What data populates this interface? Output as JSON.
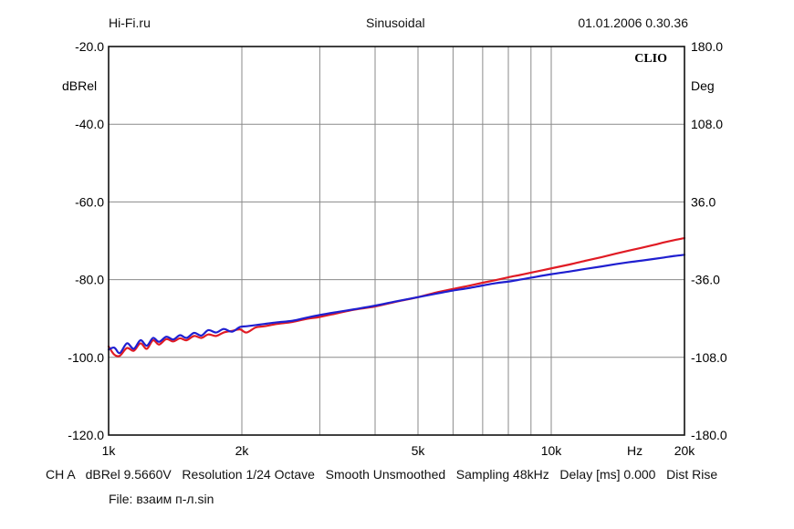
{
  "header": {
    "left": "Hi-Fi.ru",
    "center": "Sinusoidal",
    "right": "01.01.2006 0.30.36"
  },
  "footer": {
    "line": "CH A   dBRel 9.5660V   Resolution 1/24 Octave   Smooth Unsmoothed   Sampling 48kHz   Delay [ms] 0.000   Dist Rise",
    "file": "File: взаим п-л.sin"
  },
  "chart_data": {
    "type": "line",
    "x_scale": "log",
    "xlim": [
      1000,
      20000
    ],
    "ylim": [
      -120,
      -20
    ],
    "y2lim": [
      -180,
      180
    ],
    "ylabel": "dBRel",
    "y2label": "Deg",
    "xlabel": "Hz",
    "brand": "CLIO",
    "x_ticks": [
      {
        "value": 1000,
        "label": "1k"
      },
      {
        "value": 2000,
        "label": "2k"
      },
      {
        "value": 5000,
        "label": "5k"
      },
      {
        "value": 10000,
        "label": "10k"
      },
      {
        "value": 20000,
        "label": "20k"
      }
    ],
    "y_ticks": [
      {
        "value": -20,
        "label": "-20.0"
      },
      {
        "value": -40,
        "label": "-40.0"
      },
      {
        "value": -60,
        "label": "-60.0"
      },
      {
        "value": -80,
        "label": "-80.0"
      },
      {
        "value": -100,
        "label": "-100.0"
      },
      {
        "value": -120,
        "label": "-120.0"
      }
    ],
    "y2_ticks": [
      {
        "value": 180,
        "label": "180.0"
      },
      {
        "value": 108,
        "label": "108.0"
      },
      {
        "value": 36,
        "label": "36.0"
      },
      {
        "value": -36,
        "label": "-36.0"
      },
      {
        "value": -108,
        "label": "-108.0"
      },
      {
        "value": -180,
        "label": "-180.0"
      }
    ],
    "series": [
      {
        "name": "red",
        "color": "#e01b24",
        "x": [
          1000,
          1030,
          1060,
          1100,
          1140,
          1180,
          1220,
          1260,
          1300,
          1350,
          1400,
          1450,
          1500,
          1560,
          1620,
          1680,
          1750,
          1820,
          1900,
          1980,
          2050,
          2150,
          2250,
          2400,
          2600,
          2800,
          3000,
          3300,
          3600,
          4000,
          4500,
          5000,
          5500,
          6000,
          6500,
          7000,
          7500,
          8000,
          8500,
          9000,
          10000,
          11000,
          12000,
          13000,
          14000,
          15000,
          16000,
          17000,
          18000,
          19000,
          20000
        ],
        "values": [
          -97.2,
          -99.3,
          -99.6,
          -97.6,
          -98.3,
          -96.4,
          -97.8,
          -95.6,
          -96.7,
          -95.3,
          -95.9,
          -95.1,
          -95.6,
          -94.5,
          -95.0,
          -94.1,
          -94.5,
          -93.6,
          -93.2,
          -92.8,
          -93.6,
          -92.3,
          -92.0,
          -91.4,
          -90.9,
          -90.1,
          -89.6,
          -88.6,
          -87.7,
          -86.9,
          -85.6,
          -84.5,
          -83.3,
          -82.4,
          -81.6,
          -80.8,
          -80.1,
          -79.4,
          -78.8,
          -78.2,
          -77.1,
          -76.1,
          -75.1,
          -74.2,
          -73.3,
          -72.5,
          -71.8,
          -71.1,
          -70.4,
          -69.8,
          -69.3
        ]
      },
      {
        "name": "blue",
        "color": "#1f1fd0",
        "x": [
          1000,
          1030,
          1060,
          1100,
          1140,
          1180,
          1220,
          1260,
          1300,
          1350,
          1400,
          1450,
          1500,
          1560,
          1620,
          1680,
          1750,
          1820,
          1900,
          1980,
          2050,
          2150,
          2250,
          2400,
          2600,
          2800,
          3000,
          3300,
          3600,
          4000,
          4500,
          5000,
          5500,
          6000,
          6500,
          7000,
          7500,
          8000,
          8500,
          9000,
          10000,
          11000,
          12000,
          13000,
          14000,
          15000,
          16000,
          17000,
          18000,
          19000,
          20000
        ],
        "values": [
          -98.0,
          -97.5,
          -98.9,
          -96.4,
          -97.8,
          -95.6,
          -97.0,
          -95.0,
          -96.0,
          -94.7,
          -95.4,
          -94.3,
          -95.0,
          -93.7,
          -94.4,
          -93.0,
          -93.6,
          -92.7,
          -93.4,
          -92.2,
          -92.0,
          -91.7,
          -91.4,
          -91.0,
          -90.6,
          -89.8,
          -89.1,
          -88.3,
          -87.6,
          -86.7,
          -85.5,
          -84.5,
          -83.6,
          -82.8,
          -82.2,
          -81.5,
          -80.9,
          -80.5,
          -80.0,
          -79.5,
          -78.6,
          -77.9,
          -77.2,
          -76.6,
          -76.0,
          -75.5,
          -75.1,
          -74.7,
          -74.3,
          -73.9,
          -73.6
        ]
      }
    ]
  }
}
